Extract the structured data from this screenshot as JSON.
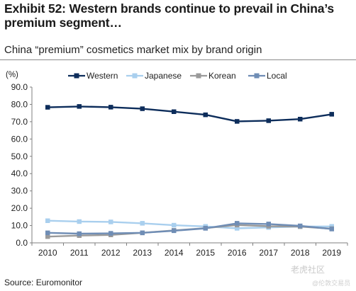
{
  "header": {
    "title": "Exhibit 52: Western brands continue to prevail in China’s premium segment…",
    "subtitle": "China “premium” cosmetics market mix by brand origin"
  },
  "footer": {
    "source": "Source: Euromonitor",
    "watermark": "老虎社区",
    "watermark_sub": "@伦敦交易员"
  },
  "chart_data": {
    "type": "line",
    "unit_label": "(%)",
    "categories": [
      "2010",
      "2011",
      "2012",
      "2013",
      "2014",
      "2015",
      "2016",
      "2017",
      "2018",
      "2019"
    ],
    "ylim": [
      0,
      90
    ],
    "yticks": [
      "0.0",
      "10.0",
      "20.0",
      "30.0",
      "40.0",
      "50.0",
      "60.0",
      "70.0",
      "80.0",
      "90.0"
    ],
    "grid": false,
    "legend_position": "top",
    "series": [
      {
        "name": "Western",
        "color": "#0d2d5b",
        "values": [
          78.3,
          78.8,
          78.4,
          77.5,
          75.8,
          74.0,
          70.2,
          70.6,
          71.5,
          74.3
        ]
      },
      {
        "name": "Japanese",
        "color": "#a9cfee",
        "values": [
          12.8,
          12.3,
          12.1,
          11.3,
          10.2,
          9.5,
          8.4,
          8.9,
          9.4,
          9.5
        ]
      },
      {
        "name": "Korean",
        "color": "#9a9a9a",
        "values": [
          3.6,
          4.2,
          4.6,
          5.8,
          7.2,
          8.5,
          10.3,
          9.6,
          9.4,
          8.2
        ]
      },
      {
        "name": "Local",
        "color": "#6f8db5",
        "values": [
          5.8,
          5.3,
          5.5,
          5.8,
          7.0,
          8.4,
          11.3,
          10.9,
          9.8,
          8.0
        ]
      }
    ]
  }
}
